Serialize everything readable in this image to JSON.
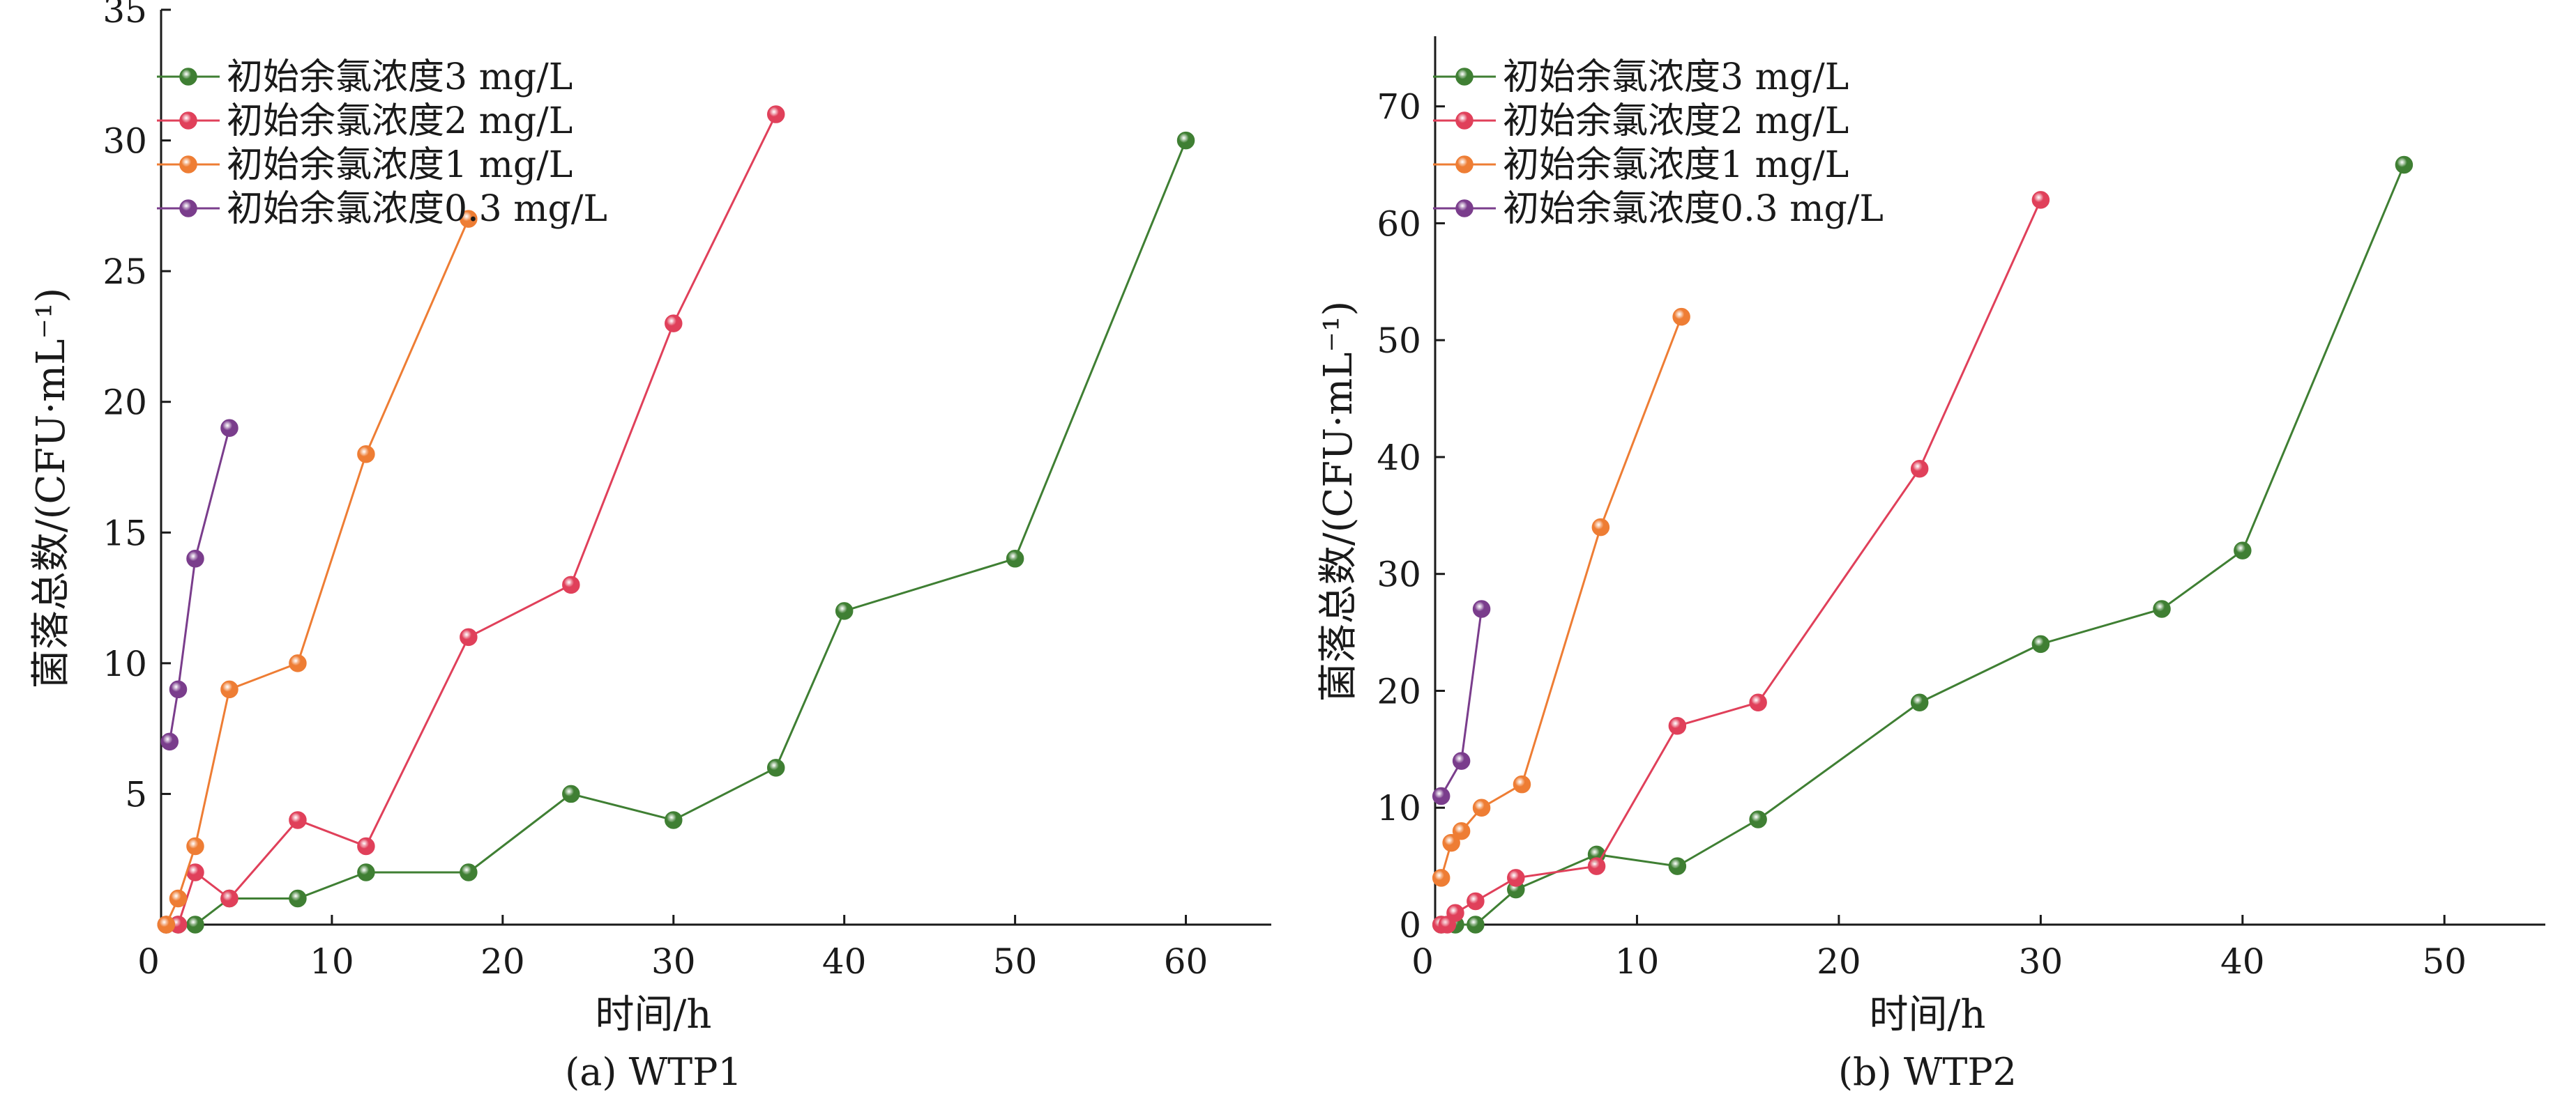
{
  "colors": {
    "green": "#3f7f33",
    "red": "#e0405a",
    "orange": "#ee7d34",
    "purple": "#7a3d8c",
    "axis": "#1a1a1a"
  },
  "chart_data": [
    {
      "type": "line",
      "caption": "(a) WTP1",
      "xlabel": "时间/h",
      "ylabel": "菌落总数/(CFU·mL⁻¹)",
      "xlim": [
        0,
        65
      ],
      "ylim": [
        0,
        35
      ],
      "xticks": [
        0,
        10,
        20,
        30,
        40,
        50,
        60
      ],
      "yticks": [
        0,
        5,
        10,
        15,
        20,
        25,
        30,
        35
      ],
      "grid": false,
      "legend_position": "top-left",
      "series": [
        {
          "name": "初始余氯浓度3 mg/L",
          "color": "green",
          "x": [
            0.3,
            1,
            2,
            4,
            8,
            12,
            18,
            24,
            30,
            36,
            40,
            50,
            60
          ],
          "y": [
            0,
            0,
            0,
            1,
            1,
            2,
            2,
            5,
            4,
            6,
            12,
            14,
            30
          ]
        },
        {
          "name": "初始余氯浓度2 mg/L",
          "color": "red",
          "x": [
            0.3,
            1,
            2,
            4,
            8,
            12,
            18,
            24,
            30,
            36
          ],
          "y": [
            0,
            0,
            2,
            1,
            4,
            3,
            11,
            13,
            23,
            31
          ]
        },
        {
          "name": "初始余氯浓度1 mg/L",
          "color": "orange",
          "x": [
            0.3,
            1,
            2,
            4,
            8,
            12,
            18
          ],
          "y": [
            0,
            1,
            3,
            9,
            10,
            18,
            27
          ]
        },
        {
          "name": "初始余氯浓度0.3 mg/L",
          "color": "purple",
          "x": [
            0.5,
            1,
            2,
            4
          ],
          "y": [
            7,
            9,
            14,
            19
          ]
        }
      ]
    },
    {
      "type": "line",
      "caption": "(b) WTP2",
      "xlabel": "时间/h",
      "ylabel": "菌落总数/(CFU·mL⁻¹)",
      "xlim": [
        0,
        55
      ],
      "ylim": [
        0,
        76
      ],
      "xticks": [
        0,
        10,
        20,
        30,
        40,
        50
      ],
      "yticks": [
        0,
        10,
        20,
        30,
        40,
        50,
        60,
        70
      ],
      "grid": false,
      "legend_position": "top-left",
      "series": [
        {
          "name": "初始余氯浓度3 mg/L",
          "color": "green",
          "x": [
            0.3,
            1,
            2,
            4,
            8,
            12,
            16,
            24,
            30,
            36,
            40,
            48
          ],
          "y": [
            0,
            0,
            0,
            3,
            6,
            5,
            9,
            19,
            24,
            27,
            32,
            65
          ]
        },
        {
          "name": "初始余氯浓度2 mg/L",
          "color": "red",
          "x": [
            0.3,
            0.6,
            1,
            2,
            4,
            8,
            12,
            16,
            24,
            30
          ],
          "y": [
            0,
            0,
            1,
            2,
            4,
            5,
            17,
            19,
            39,
            62
          ]
        },
        {
          "name": "初始余氯浓度1 mg/L",
          "color": "orange",
          "x": [
            0.3,
            0.8,
            1.3,
            2.3,
            4.3,
            8.2,
            12.2
          ],
          "y": [
            4,
            7,
            8,
            10,
            12,
            34,
            52
          ]
        },
        {
          "name": "初始余氯浓度0.3 mg/L",
          "color": "purple",
          "x": [
            0.3,
            1.3,
            2.3
          ],
          "y": [
            11,
            14,
            27
          ]
        }
      ]
    }
  ]
}
